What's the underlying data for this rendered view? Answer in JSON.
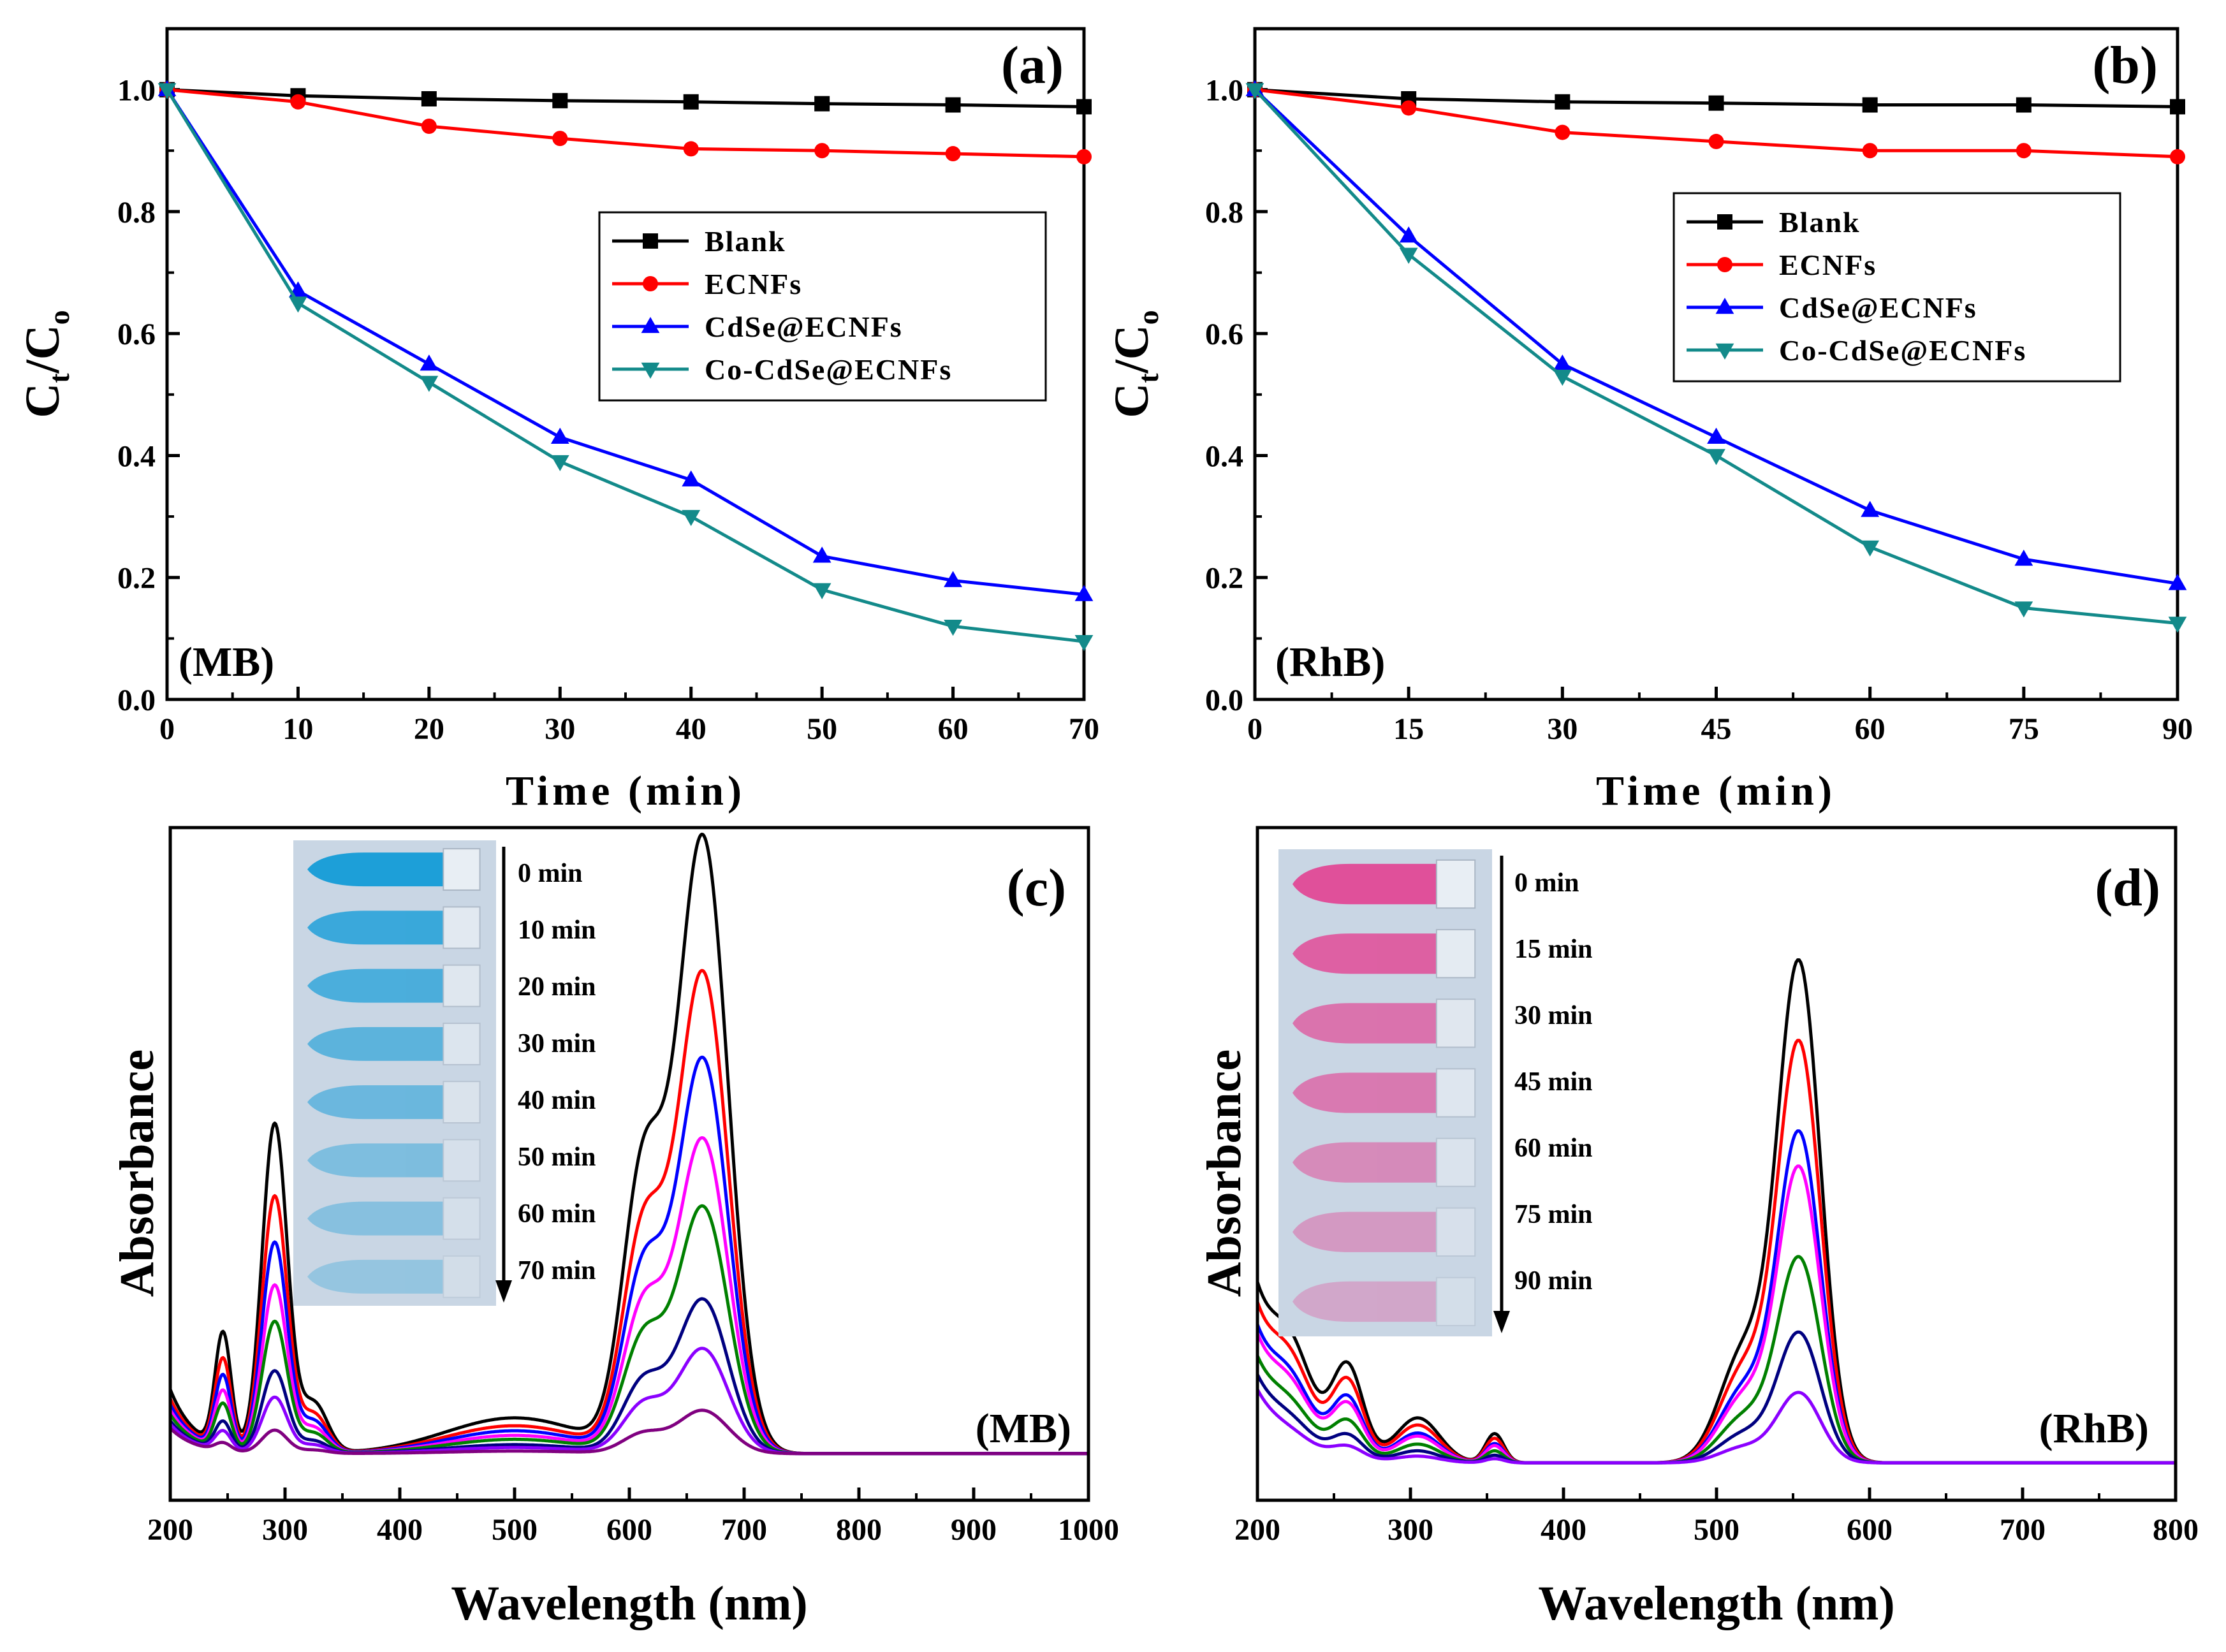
{
  "colors": {
    "Blank": "#000000",
    "ECNFs": "#ff0000",
    "CdSe@ECNFs": "#0000ff",
    "Co-CdSe@ECNFs": "#138a8a",
    "spectra": [
      "#000000",
      "#ff0000",
      "#0000ff",
      "#ff00ff",
      "#008000",
      "#000080",
      "#8b00ff",
      "#800080"
    ],
    "mb_solution": "#1d9fd8",
    "rhb_solution": "#e0509a"
  },
  "chart_data": [
    {
      "type": "line",
      "panel": "(a)",
      "sample_label": "(MB)",
      "xlabel": "Time (min)",
      "ylabel_main": "C",
      "ylabel_sub1": "t",
      "ylabel_mid": "/C",
      "ylabel_sub2": "o",
      "xlim": [
        0,
        70
      ],
      "ylim": [
        0,
        1.1
      ],
      "xticks": [
        "0",
        "10",
        "20",
        "30",
        "40",
        "50",
        "60",
        "70"
      ],
      "yticks": [
        "0.0",
        "0.2",
        "0.4",
        "0.6",
        "0.8",
        "1.0"
      ],
      "x": [
        0,
        10,
        20,
        30,
        40,
        50,
        60,
        70
      ],
      "legend_position": "upper-right",
      "series": [
        {
          "name": "Blank",
          "marker": "square",
          "values": [
            1.0,
            0.99,
            0.985,
            0.982,
            0.98,
            0.977,
            0.975,
            0.972
          ]
        },
        {
          "name": "ECNFs",
          "marker": "circle",
          "values": [
            1.0,
            0.98,
            0.94,
            0.92,
            0.903,
            0.9,
            0.895,
            0.89
          ]
        },
        {
          "name": "CdSe@ECNFs",
          "marker": "triangle-up",
          "values": [
            1.0,
            0.67,
            0.55,
            0.43,
            0.36,
            0.235,
            0.195,
            0.172
          ]
        },
        {
          "name": "Co-CdSe@ECNFs",
          "marker": "triangle-down",
          "values": [
            1.0,
            0.65,
            0.52,
            0.39,
            0.3,
            0.18,
            0.12,
            0.095
          ]
        }
      ]
    },
    {
      "type": "line",
      "panel": "(b)",
      "sample_label": "(RhB)",
      "xlabel": "Time (min)",
      "ylabel_main": "C",
      "ylabel_sub1": "t",
      "ylabel_mid": "/C",
      "ylabel_sub2": "o",
      "xlim": [
        0,
        90
      ],
      "ylim": [
        0,
        1.1
      ],
      "xticks": [
        "0",
        "15",
        "30",
        "45",
        "60",
        "75",
        "90"
      ],
      "yticks": [
        "0.0",
        "0.2",
        "0.4",
        "0.6",
        "0.8",
        "1.0"
      ],
      "x": [
        0,
        15,
        30,
        45,
        60,
        75,
        90
      ],
      "legend_position": "upper-right",
      "series": [
        {
          "name": "Blank",
          "marker": "square",
          "values": [
            1.0,
            0.985,
            0.98,
            0.978,
            0.975,
            0.975,
            0.972
          ]
        },
        {
          "name": "ECNFs",
          "marker": "circle",
          "values": [
            1.0,
            0.97,
            0.93,
            0.915,
            0.9,
            0.9,
            0.89
          ]
        },
        {
          "name": "CdSe@ECNFs",
          "marker": "triangle-up",
          "values": [
            1.0,
            0.76,
            0.55,
            0.43,
            0.31,
            0.23,
            0.19
          ]
        },
        {
          "name": "Co-CdSe@ECNFs",
          "marker": "triangle-down",
          "values": [
            1.0,
            0.73,
            0.53,
            0.4,
            0.25,
            0.15,
            0.125
          ]
        }
      ]
    },
    {
      "type": "line",
      "panel": "(c)",
      "sample_label": "(MB)",
      "xlabel": "Wavelength (nm)",
      "ylabel": "Absorbance",
      "xlim": [
        200,
        1000
      ],
      "ylim": [
        0,
        1
      ],
      "xticks": [
        "200",
        "300",
        "400",
        "500",
        "600",
        "700",
        "800",
        "900",
        "1000"
      ],
      "inset_labels": [
        "0 min",
        "10 min",
        "20 min",
        "30 min",
        "40 min",
        "50 min",
        "60 min",
        "70 min"
      ],
      "times": [
        "0 min",
        "10 min",
        "20 min",
        "30 min",
        "40 min",
        "50 min",
        "60 min",
        "70 min"
      ],
      "scales": [
        1.0,
        0.78,
        0.64,
        0.51,
        0.4,
        0.25,
        0.17,
        0.07
      ],
      "peaks": [
        {
          "center": 664,
          "width": 22,
          "height": 0.86
        },
        {
          "center": 612,
          "width": 18,
          "height": 0.38
        },
        {
          "center": 291,
          "width": 11,
          "height": 0.46
        },
        {
          "center": 246,
          "width": 7,
          "height": 0.16
        },
        {
          "center": 325,
          "width": 12,
          "height": 0.07
        },
        {
          "center": 500,
          "width": 60,
          "height": 0.05
        }
      ],
      "baseline": 0.018,
      "uv_edge": 0.09
    },
    {
      "type": "line",
      "panel": "(d)",
      "sample_label": "(RhB)",
      "xlabel": "Wavelength (nm)",
      "ylabel": "Absorbance",
      "xlim": [
        200,
        800
      ],
      "ylim": [
        0,
        1
      ],
      "xticks": [
        "200",
        "300",
        "400",
        "500",
        "600",
        "700",
        "800"
      ],
      "inset_labels": [
        "0 min",
        "15 min",
        "30 min",
        "45 min",
        "60 min",
        "75 min",
        "90 min"
      ],
      "times": [
        "0 min",
        "15 min",
        "30 min",
        "45 min",
        "60 min",
        "75 min",
        "90 min"
      ],
      "scales": [
        1.0,
        0.84,
        0.66,
        0.59,
        0.41,
        0.26,
        0.14
      ],
      "peaks": [
        {
          "center": 554,
          "width": 14,
          "height": 0.68
        },
        {
          "center": 518,
          "width": 16,
          "height": 0.15
        },
        {
          "center": 259,
          "width": 10,
          "height": 0.12
        },
        {
          "center": 222,
          "width": 14,
          "height": 0.1
        },
        {
          "center": 305,
          "width": 14,
          "height": 0.06
        },
        {
          "center": 355,
          "width": 6,
          "height": 0.04
        }
      ],
      "baseline": 0.012,
      "uv_edge": 0.22
    }
  ]
}
